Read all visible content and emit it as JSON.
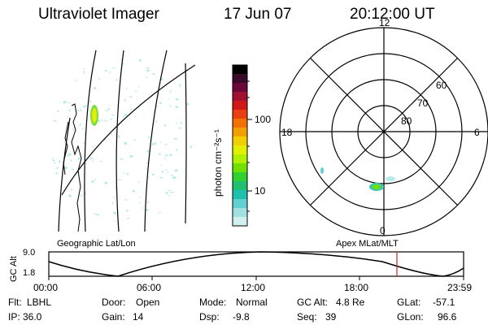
{
  "header": {
    "instrument": "Ultraviolet Imager",
    "date": "17 Jun 07",
    "time": "20:12:00 UT"
  },
  "colorbar": {
    "unit_label": "photon cm⁻²s⁻¹",
    "ticks": [
      "100",
      "10"
    ],
    "colors": [
      "#000000",
      "#3a0a2a",
      "#6a0a3a",
      "#a01030",
      "#d01818",
      "#e84010",
      "#f07000",
      "#f0a000",
      "#f0d000",
      "#e0f000",
      "#b0f000",
      "#70e000",
      "#30d030",
      "#20c070",
      "#20c0b0",
      "#60d0d0",
      "#a0e0e0",
      "#d0f0f0"
    ]
  },
  "left_panel": {
    "caption": "Geographic Lat/Lon"
  },
  "right_panel": {
    "caption": "Apex MLat/MLT",
    "mlt_labels": [
      "12",
      "18",
      "6",
      "0"
    ],
    "lat_labels": [
      "60",
      "70",
      "80"
    ]
  },
  "altitude_plot": {
    "ylabel": "GC Alt",
    "ytick_top": "9.0",
    "ytick_bottom": "1.8",
    "xticks": [
      "00:00",
      "06:00",
      "12:00",
      "18:00",
      "23:59"
    ],
    "current_marker_color": "#d02020"
  },
  "status": {
    "row1": [
      {
        "label": "Flt:",
        "value": "LBHL"
      },
      {
        "label": "Door:",
        "value": "Open"
      },
      {
        "label": "Mode:",
        "value": "Normal"
      },
      {
        "label": "GC Alt:",
        "value": "4.8 Re"
      },
      {
        "label": "GLat:",
        "value": "-57.1"
      }
    ],
    "row2": [
      {
        "label": "IP:",
        "value": "36.0"
      },
      {
        "label": "Gain:",
        "value": "14"
      },
      {
        "label": "Dsp:",
        "value": "-9.8"
      },
      {
        "label": "Seq:",
        "value": "39"
      },
      {
        "label": "GLon:",
        "value": "96.6"
      }
    ]
  }
}
